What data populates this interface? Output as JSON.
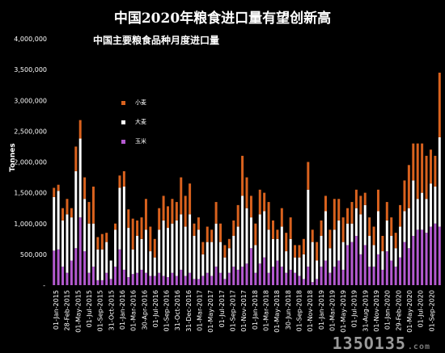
{
  "watermark": "135O135",
  "watermark_suffix": ".com",
  "chart_data": {
    "type": "bar",
    "stacked": true,
    "title": "中国2020年粮食进口量有望创新高",
    "subtitle": "中国主要粮食品种月度进口量",
    "xlabel": "",
    "ylabel": "Tonnes",
    "ylim": [
      0,
      4000000
    ],
    "yticks": [
      {
        "value": 500000,
        "label": "500,000"
      },
      {
        "value": 1000000,
        "label": "1,000,000"
      },
      {
        "value": 1500000,
        "label": "1,500,000"
      },
      {
        "value": 2000000,
        "label": "2,000,000"
      },
      {
        "value": 2500000,
        "label": "2,500,000"
      },
      {
        "value": 3000000,
        "label": "3,000,000"
      },
      {
        "value": 3500000,
        "label": "3,500,000"
      },
      {
        "value": 4000000,
        "label": "4,000,000"
      }
    ],
    "ytick_zero_label": "-",
    "xtick_labels": [
      "01-Jan-2015",
      "28-Feb-2015",
      "01-May-2015",
      "01-Jul-2015",
      "01-Sep-2015",
      "31-Oct-2015",
      "01-Jan-2016",
      "01-Mar-2016",
      "30-Apr-2016",
      "01-Jul-2016",
      "01-Sep-2016",
      "31-Oct-2016",
      "31-Dec-2016",
      "01-Mar-2017",
      "01-May-2017",
      "01-Jul-2017",
      "01-Sep-2017",
      "01-Nov-2017",
      "01-Jan-2018",
      "01-Mar-2018",
      "01-May-2018",
      "30-Jun-2018",
      "01-Sep-2018",
      "01-Nov-2018",
      "01-Jan-2019",
      "01-Mar-2019",
      "01-May-2019",
      "01-Jul-2019",
      "31-Aug-2019",
      "01-Nov-2019",
      "01-Jan-2020",
      "29-Feb-2020",
      "01-May-2020",
      "01-Jul-2020",
      "01-Sep-2020"
    ],
    "legend_position": "upper-left",
    "series": [
      {
        "name": "玉米",
        "color": "#b45ad0",
        "values": [
          560000,
          580000,
          300000,
          200000,
          400000,
          600000,
          1100000,
          550000,
          200000,
          300000,
          80000,
          80000,
          200000,
          100000,
          300000,
          580000,
          250000,
          130000,
          180000,
          200000,
          250000,
          200000,
          150000,
          150000,
          200000,
          150000,
          130000,
          200000,
          150000,
          250000,
          150000,
          200000,
          100000,
          100000,
          150000,
          200000,
          150000,
          300000,
          200000,
          100000,
          200000,
          300000,
          250000,
          300000,
          350000,
          600000,
          200000,
          350000,
          450000,
          200000,
          300000,
          400000,
          300000,
          200000,
          250000,
          200000,
          150000,
          100000,
          300000,
          50000,
          100000,
          300000,
          400000,
          200000,
          300000,
          400000,
          250000,
          650000,
          700000,
          800000,
          500000,
          650000,
          300000,
          300000,
          500000,
          250000,
          550000,
          400000,
          300000,
          450000,
          700000,
          600000,
          800000,
          900000,
          900000,
          850000,
          950000,
          1000000,
          950000
        ]
      },
      {
        "name": "大麦",
        "color": "#ffffff",
        "values": [
          870000,
          950000,
          750000,
          950000,
          700000,
          1250000,
          1280000,
          850000,
          800000,
          700000,
          500000,
          500000,
          500000,
          300000,
          600000,
          1000000,
          1350000,
          800000,
          400000,
          600000,
          500000,
          700000,
          400000,
          300000,
          700000,
          900000,
          800000,
          800000,
          900000,
          900000,
          800000,
          950000,
          700000,
          800000,
          350000,
          500000,
          550000,
          700000,
          500000,
          350000,
          400000,
          500000,
          700000,
          1150000,
          900000,
          500000,
          450000,
          800000,
          750000,
          700000,
          450000,
          350000,
          650000,
          350000,
          500000,
          250000,
          300000,
          400000,
          1250000,
          650000,
          300000,
          500000,
          800000,
          400000,
          600000,
          650000,
          450000,
          350000,
          300000,
          450000,
          650000,
          650000,
          500000,
          350000,
          700000,
          300000,
          500000,
          400000,
          300000,
          500000,
          500000,
          650000,
          900000,
          500000,
          600000,
          550000,
          700000,
          600000,
          1450000
        ]
      },
      {
        "name": "小麦",
        "color": "#d9621e",
        "values": [
          150000,
          100000,
          200000,
          250000,
          150000,
          400000,
          300000,
          350000,
          350000,
          600000,
          200000,
          250000,
          150000,
          0,
          100000,
          200000,
          250000,
          300000,
          500000,
          250000,
          350000,
          500000,
          400000,
          300000,
          350000,
          400000,
          350000,
          400000,
          300000,
          600000,
          500000,
          500000,
          200000,
          200000,
          200000,
          250000,
          200000,
          350000,
          300000,
          200000,
          150000,
          250000,
          350000,
          650000,
          500000,
          350000,
          350000,
          400000,
          300000,
          450000,
          300000,
          150000,
          300000,
          300000,
          350000,
          200000,
          200000,
          250000,
          450000,
          200000,
          300000,
          250000,
          250000,
          300000,
          500000,
          350000,
          400000,
          250000,
          350000,
          300000,
          300000,
          200000,
          300000,
          300000,
          350000,
          250000,
          300000,
          300000,
          250000,
          350000,
          500000,
          700000,
          600000,
          900000,
          800000,
          700000,
          550000,
          500000,
          1050000
        ]
      }
    ]
  }
}
